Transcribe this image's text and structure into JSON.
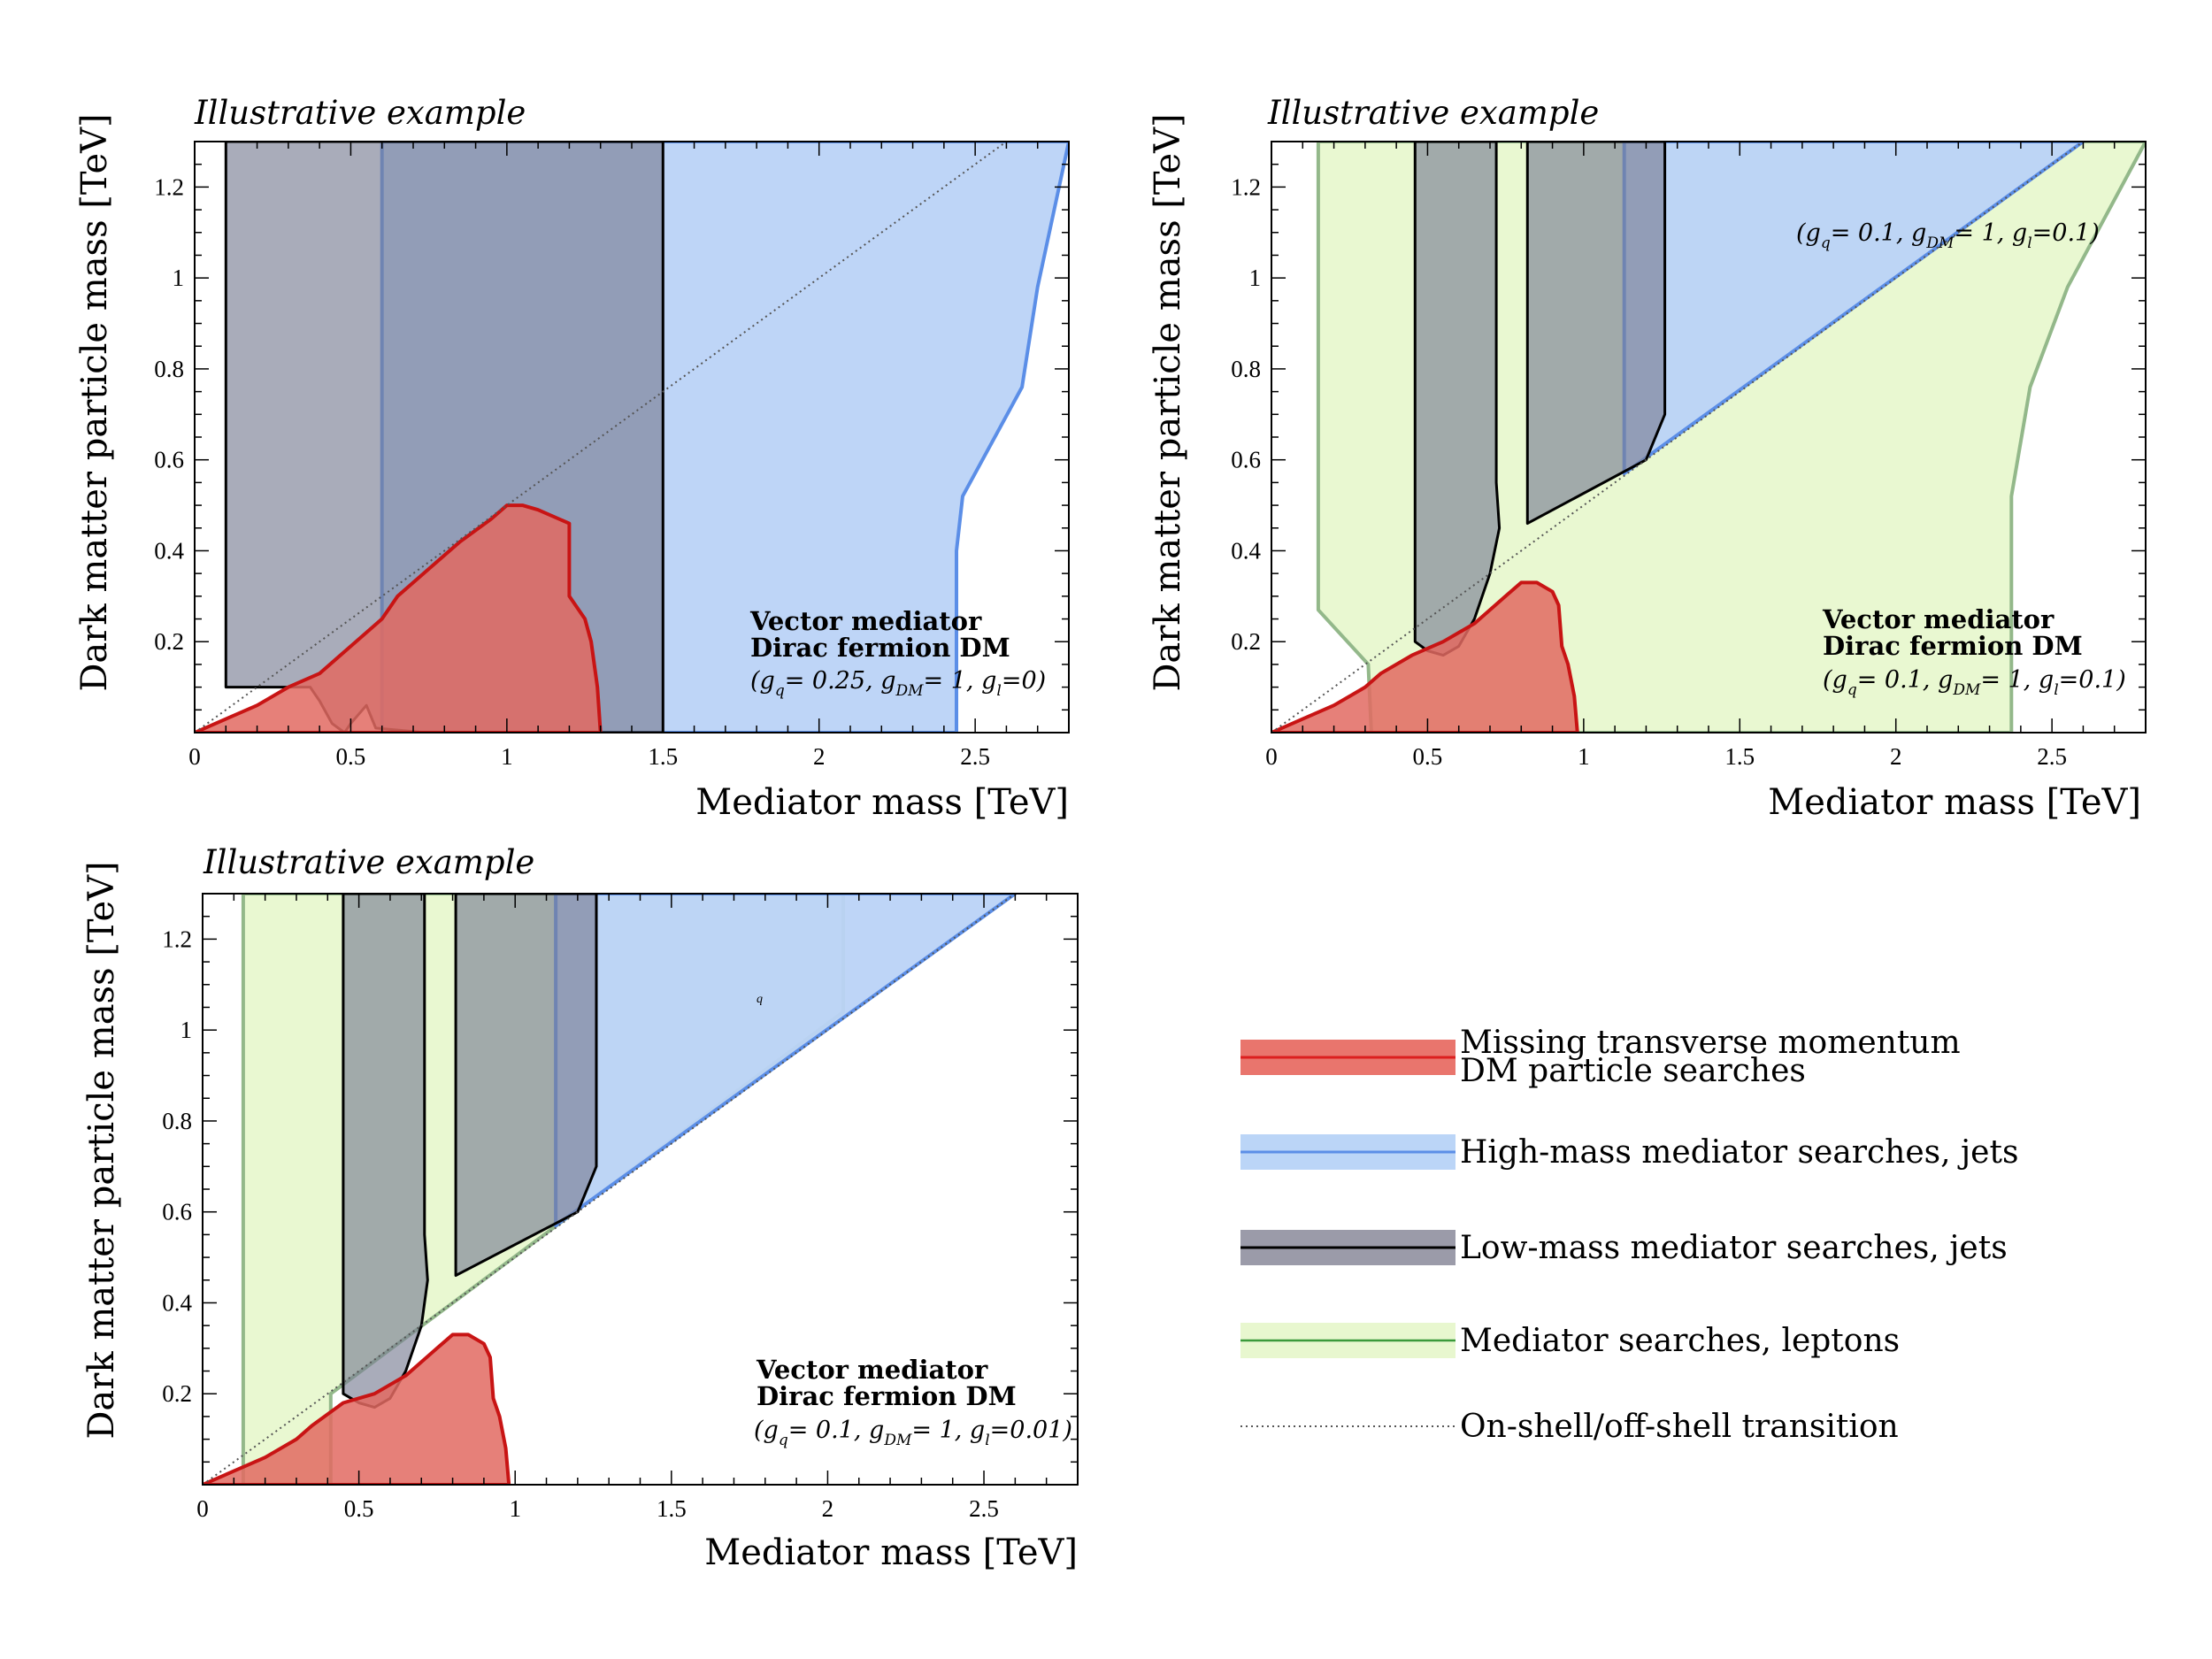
{
  "chart_data": [
    {
      "type": "area",
      "title": "Illustrative example",
      "xlabel": "Mediator mass [TeV]",
      "ylabel": "Dark matter particle mass [TeV]",
      "xlim": [
        0,
        2.8
      ],
      "ylim": [
        0,
        1.3
      ],
      "xticks": [
        "0",
        "0.5",
        "1",
        "1.5",
        "2",
        "2.5"
      ],
      "yticks": [
        "0.2",
        "0.4",
        "0.6",
        "0.8",
        "1",
        "1.2"
      ],
      "annotation": {
        "line1": "Vector mediator",
        "line2": "Dirac fermion DM",
        "coupling": "(gq= 0.25, gDM= 1, gl=0)"
      },
      "series": [
        {
          "name": "Missing transverse momentum DM particle searches",
          "points": [
            [
              0,
              0
            ],
            [
              0.1,
              0.03
            ],
            [
              0.2,
              0.06
            ],
            [
              0.3,
              0.1
            ],
            [
              0.4,
              0.13
            ],
            [
              0.5,
              0.19
            ],
            [
              0.6,
              0.25
            ],
            [
              0.65,
              0.3
            ],
            [
              0.75,
              0.36
            ],
            [
              0.85,
              0.42
            ],
            [
              0.95,
              0.47
            ],
            [
              1.0,
              0.5
            ],
            [
              1.05,
              0.5
            ],
            [
              1.1,
              0.49
            ],
            [
              1.2,
              0.46
            ],
            [
              1.2,
              0.3
            ],
            [
              1.25,
              0.25
            ],
            [
              1.27,
              0.2
            ],
            [
              1.29,
              0.1
            ],
            [
              1.3,
              0
            ]
          ]
        },
        {
          "name": "High-mass mediator searches, jets",
          "points": [
            [
              0.6,
              0
            ],
            [
              0.6,
              1.3
            ],
            [
              2.8,
              1.3
            ],
            [
              2.7,
              0.98
            ],
            [
              2.65,
              0.76
            ],
            [
              2.46,
              0.52
            ],
            [
              2.44,
              0.4
            ],
            [
              2.44,
              0
            ]
          ]
        },
        {
          "name": "Low-mass mediator searches, jets",
          "points": [
            [
              0.1,
              0.1
            ],
            [
              0.1,
              1.3
            ],
            [
              1.5,
              1.3
            ],
            [
              1.5,
              0
            ],
            [
              0.74,
              0
            ],
            [
              0.58,
              0.01
            ],
            [
              0.55,
              0.06
            ],
            [
              0.5,
              0.02
            ],
            [
              0.48,
              0
            ],
            [
              0.44,
              0.02
            ],
            [
              0.4,
              0.07
            ],
            [
              0.38,
              0.09
            ],
            [
              0.37,
              0.1
            ]
          ]
        }
      ]
    },
    {
      "type": "area",
      "title": "Illustrative example",
      "xlabel": "Mediator mass [TeV]",
      "ylabel": "Dark matter particle mass [TeV]",
      "xlim": [
        0,
        2.8
      ],
      "ylim": [
        0,
        1.3
      ],
      "xticks": [
        "0",
        "0.5",
        "1",
        "1.5",
        "2",
        "2.5"
      ],
      "yticks": [
        "0.2",
        "0.4",
        "0.6",
        "0.8",
        "1",
        "1.2"
      ],
      "annotation": {
        "line1": "Vector mediator",
        "line2": "Dirac fermion DM",
        "coupling": "(gq= 0.1, gDM= 1, gl=0.1)",
        "coupling_top": "(gq= 0.1, gDM= 1, gl=0.1)"
      },
      "series": [
        {
          "name": "Mediator searches, leptons",
          "points": [
            [
              0.15,
              1.3
            ],
            [
              2.8,
              1.3
            ],
            [
              2.55,
              0.98
            ],
            [
              2.43,
              0.76
            ],
            [
              2.37,
              0.52
            ],
            [
              2.37,
              0
            ],
            [
              0.32,
              0
            ],
            [
              0.31,
              0.15
            ],
            [
              0.15,
              0.27
            ]
          ]
        },
        {
          "name": "High-mass mediator searches, jets",
          "points": [
            [
              1.13,
              1.3
            ],
            [
              2.6,
              1.3
            ],
            [
              1.13,
              0.57
            ]
          ]
        },
        {
          "name": "Missing transverse momentum DM particle searches",
          "points": [
            [
              0,
              0
            ],
            [
              0.1,
              0.03
            ],
            [
              0.2,
              0.06
            ],
            [
              0.3,
              0.1
            ],
            [
              0.35,
              0.13
            ],
            [
              0.45,
              0.17
            ],
            [
              0.55,
              0.2
            ],
            [
              0.65,
              0.24
            ],
            [
              0.75,
              0.3
            ],
            [
              0.8,
              0.33
            ],
            [
              0.85,
              0.33
            ],
            [
              0.9,
              0.31
            ],
            [
              0.92,
              0.28
            ],
            [
              0.93,
              0.19
            ],
            [
              0.95,
              0.15
            ],
            [
              0.97,
              0.08
            ],
            [
              0.98,
              0
            ]
          ]
        },
        {
          "name": "Low-mass mediator searches, jets",
          "regions": [
            [
              [
                0.46,
                1.3
              ],
              [
                0.72,
                1.3
              ],
              [
                0.72,
                0.55
              ],
              [
                0.73,
                0.45
              ],
              [
                0.7,
                0.35
              ],
              [
                0.65,
                0.25
              ],
              [
                0.6,
                0.19
              ],
              [
                0.55,
                0.17
              ],
              [
                0.5,
                0.18
              ],
              [
                0.46,
                0.2
              ]
            ],
            [
              [
                0.82,
                1.3
              ],
              [
                1.26,
                1.3
              ],
              [
                1.26,
                0.7
              ],
              [
                1.2,
                0.6
              ],
              [
                0.82,
                0.46
              ]
            ]
          ]
        }
      ]
    },
    {
      "type": "area",
      "title": "Illustrative example",
      "xlabel": "Mediator mass [TeV]",
      "ylabel": "Dark matter particle mass [TeV]",
      "xlim": [
        0,
        2.8
      ],
      "ylim": [
        0,
        1.3
      ],
      "xticks": [
        "0",
        "0.5",
        "1",
        "1.5",
        "2",
        "2.5"
      ],
      "yticks": [
        "0.2",
        "0.4",
        "0.6",
        "0.8",
        "1",
        "1.2"
      ],
      "annotation": {
        "line1": "Vector mediator",
        "line2": "Dirac fermion DM",
        "coupling": "(gq= 0.1, gDM= 1, gl=0.01)",
        "stray_label": "q"
      },
      "series": [
        {
          "name": "Mediator searches, leptons",
          "points": [
            [
              0.13,
              1.3
            ],
            [
              2.05,
              1.3
            ],
            [
              2.05,
              1.04
            ],
            [
              0.41,
              0.2
            ],
            [
              0.41,
              0
            ],
            [
              0.13,
              0
            ]
          ]
        },
        {
          "name": "High-mass mediator searches, jets",
          "points": [
            [
              1.13,
              1.3
            ],
            [
              2.6,
              1.3
            ],
            [
              1.13,
              0.57
            ]
          ]
        },
        {
          "name": "Missing transverse momentum DM particle searches",
          "points": [
            [
              0,
              0
            ],
            [
              0.1,
              0.03
            ],
            [
              0.2,
              0.06
            ],
            [
              0.3,
              0.1
            ],
            [
              0.35,
              0.13
            ],
            [
              0.45,
              0.18
            ],
            [
              0.55,
              0.2
            ],
            [
              0.65,
              0.24
            ],
            [
              0.75,
              0.3
            ],
            [
              0.8,
              0.33
            ],
            [
              0.85,
              0.33
            ],
            [
              0.9,
              0.31
            ],
            [
              0.92,
              0.28
            ],
            [
              0.93,
              0.19
            ],
            [
              0.95,
              0.15
            ],
            [
              0.97,
              0.08
            ],
            [
              0.98,
              0
            ]
          ]
        },
        {
          "name": "Low-mass mediator searches, jets",
          "regions": [
            [
              [
                0.45,
                1.3
              ],
              [
                0.71,
                1.3
              ],
              [
                0.71,
                0.55
              ],
              [
                0.72,
                0.45
              ],
              [
                0.7,
                0.35
              ],
              [
                0.65,
                0.25
              ],
              [
                0.6,
                0.19
              ],
              [
                0.55,
                0.17
              ],
              [
                0.5,
                0.18
              ],
              [
                0.45,
                0.2
              ]
            ],
            [
              [
                0.81,
                1.3
              ],
              [
                1.26,
                1.3
              ],
              [
                1.26,
                0.7
              ],
              [
                1.2,
                0.6
              ],
              [
                0.81,
                0.46
              ]
            ]
          ]
        }
      ]
    }
  ],
  "legend": {
    "items": [
      {
        "line1": "Missing transverse momentum",
        "line2": "DM particle searches",
        "fill": "#e9756d",
        "stroke": "#dc1f1f",
        "style": "band"
      },
      {
        "line1": "High-mass mediator searches, jets",
        "line2": "",
        "fill": "#bbd5f7",
        "stroke": "#5b8ee7",
        "style": "band"
      },
      {
        "line1": "Low-mass mediator searches, jets",
        "line2": "",
        "fill": "#9b9ba9",
        "stroke": "#000000",
        "style": "band"
      },
      {
        "line1": "Mediator searches, leptons",
        "line2": "",
        "fill": "#e8f7cf",
        "stroke": "#3b9a3b",
        "style": "band"
      },
      {
        "line1": "On-shell/off-shell transition",
        "line2": "",
        "fill": "none",
        "stroke": "#555555",
        "style": "dotted"
      }
    ]
  },
  "colors": {
    "red_fill": "#e26a62",
    "red_stroke": "#c81414",
    "blue_fill": "#bad3f7",
    "blue_stroke": "#5b8ee7",
    "gray_fill": "#7b7f95",
    "gray_stroke": "#000000",
    "green_fill": "#e8f8cf",
    "green_stroke": "#93b88a",
    "dark_fill": "#4f5c7f",
    "dark_stroke": "#1a1a1a"
  }
}
